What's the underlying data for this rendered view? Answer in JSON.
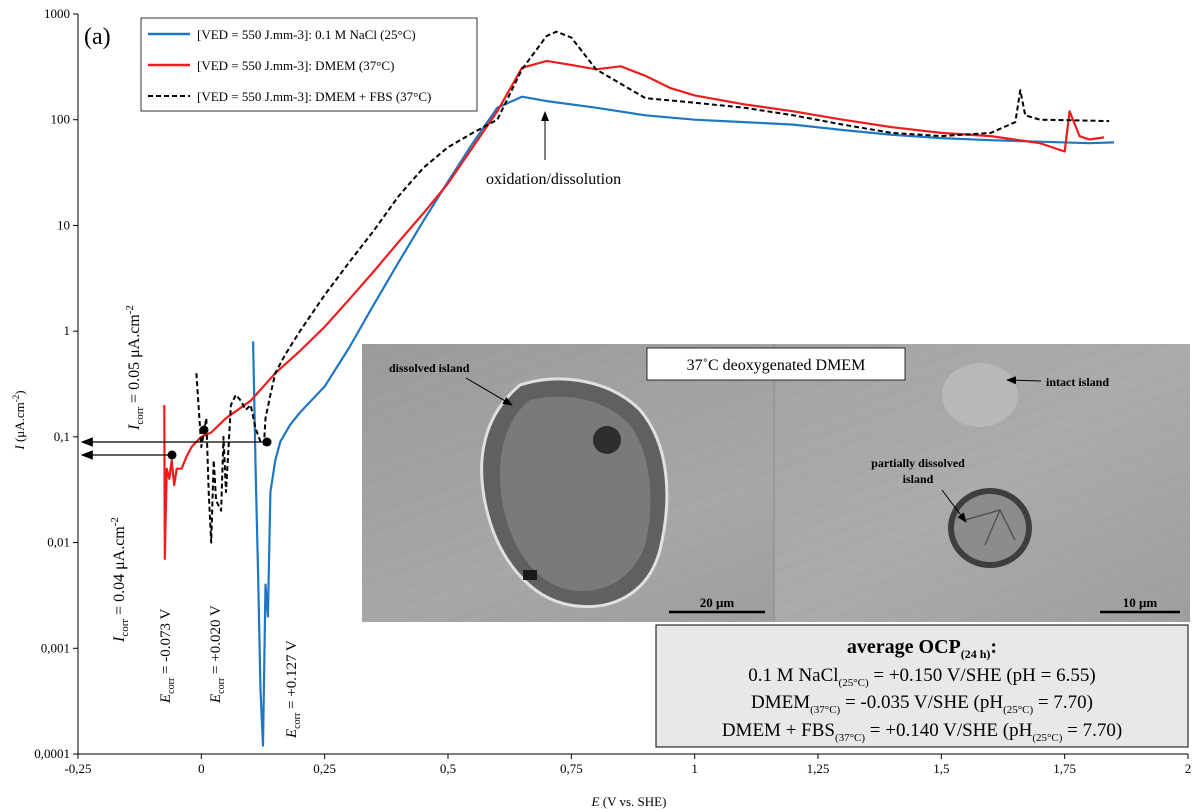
{
  "panel_label": "(a)",
  "annotation_oxidation": "oxidation/dissolution",
  "inset": {
    "title": "37˚C deoxygenated  DMEM",
    "label_dissolved": "dissolved island",
    "label_intact": "intact island",
    "label_partial_1": "partially dissolved",
    "label_partial_2": "island",
    "scalebar_left": "20 μm",
    "scalebar_right": "10 μm"
  },
  "ocp_box": {
    "title": "average OCP",
    "title_sub": "(24 h)",
    "title_colon": ":",
    "line1_a": "0.1 M NaCl",
    "line1_sub": "(25°C)",
    "line1_b": " = +0.150 V/SHE (pH = 6.55)",
    "line2_a": "DMEM",
    "line2_sub": "(37°C)",
    "line2_b": " = -0.035 V/SHE (pH",
    "line2_sub2": "(25°C)",
    "line2_c": " = 7.70)",
    "line3_a": "DMEM + FBS",
    "line3_sub": "(37°C)",
    "line3_b": " = +0.140 V/SHE (pH",
    "line3_sub2": "(25°C)",
    "line3_c": " = 7.70)"
  },
  "icorr_labels": {
    "upper_i": "I",
    "upper_sub": "corr",
    "upper_rest": " = 0.05 μA.cm",
    "upper_sup": "-2",
    "lower_i": "I",
    "lower_sub": "corr",
    "lower_rest": " = 0.04 μA.cm",
    "lower_sup": "-2"
  },
  "ecorr_labels": [
    {
      "e": "E",
      "sub": "corr",
      "rest": " = -0.073 V"
    },
    {
      "e": "E",
      "sub": "corr",
      "rest": " = +0.020 V"
    },
    {
      "e": "E",
      "sub": "corr",
      "rest": " = +0.127 V"
    }
  ],
  "axis_label_y": {
    "i": "I",
    "rest": " (μA.cm",
    "sup": "-2",
    "end": ")"
  },
  "axis_label_x": {
    "e": "E",
    "rest": " (V vs. SHE)"
  },
  "colors": {
    "nacl": "#1f77c4",
    "dmem": "#ee1c1c",
    "fbs": "#000000"
  },
  "chart_data": {
    "type": "line",
    "xlabel": "E (V vs. SHE)",
    "ylabel": "I (μA.cm-2)",
    "xlim": [
      -0.25,
      2
    ],
    "ylim": [
      0.0001,
      1000
    ],
    "y_scale": "log",
    "x_ticks": [
      "-0,25",
      "0",
      "0,25",
      "0,5",
      "0,75",
      "1",
      "1,25",
      "1,5",
      "1,75",
      "2"
    ],
    "y_ticks": [
      "0,0001",
      "0,001",
      "0,01",
      "0,1",
      "1",
      "10",
      "100",
      "1000"
    ],
    "legend_position": "top-left",
    "series": [
      {
        "name": "[VED = 550 J.mm-3]: 0.1 M NaCl (25°C)",
        "x": [
          0.105,
          0.11,
          0.115,
          0.12,
          0.125,
          0.13,
          0.135,
          0.14,
          0.15,
          0.16,
          0.18,
          0.2,
          0.25,
          0.3,
          0.35,
          0.4,
          0.45,
          0.5,
          0.55,
          0.6,
          0.65,
          0.7,
          0.8,
          0.9,
          1.0,
          1.1,
          1.2,
          1.3,
          1.4,
          1.5,
          1.6,
          1.7,
          1.8,
          1.85
        ],
        "y": [
          0.8,
          0.05,
          0.005,
          0.0004,
          0.00012,
          0.004,
          0.002,
          0.03,
          0.06,
          0.09,
          0.13,
          0.17,
          0.3,
          0.7,
          1.8,
          4.5,
          11,
          26,
          60,
          130,
          165,
          150,
          130,
          110,
          100,
          95,
          90,
          80,
          72,
          67,
          64,
          62,
          60,
          61
        ]
      },
      {
        "name": "[VED = 550 J.mm-3]: DMEM (37°C)",
        "x": [
          -0.075,
          -0.074,
          -0.072,
          -0.07,
          -0.065,
          -0.06,
          -0.055,
          -0.05,
          -0.04,
          -0.03,
          -0.02,
          -0.01,
          0.0,
          0.02,
          0.05,
          0.1,
          0.15,
          0.2,
          0.25,
          0.3,
          0.35,
          0.4,
          0.45,
          0.5,
          0.55,
          0.6,
          0.65,
          0.7,
          0.75,
          0.8,
          0.85,
          0.9,
          0.95,
          1.0,
          1.1,
          1.2,
          1.3,
          1.4,
          1.5,
          1.6,
          1.7,
          1.75,
          1.76,
          1.78,
          1.8,
          1.83
        ],
        "y": [
          0.2,
          0.007,
          0.02,
          0.05,
          0.04,
          0.06,
          0.035,
          0.05,
          0.05,
          0.065,
          0.08,
          0.09,
          0.1,
          0.11,
          0.15,
          0.22,
          0.4,
          0.65,
          1.1,
          2,
          3.7,
          7,
          13,
          25,
          55,
          120,
          310,
          360,
          330,
          300,
          320,
          260,
          200,
          170,
          140,
          120,
          100,
          85,
          75,
          70,
          60,
          50,
          120,
          70,
          65,
          68
        ]
      },
      {
        "name": "[VED = 550 J.mm-3]: DMEM + FBS (37°C)",
        "x": [
          -0.01,
          0.0,
          0.01,
          0.015,
          0.02,
          0.025,
          0.03,
          0.04,
          0.045,
          0.05,
          0.06,
          0.07,
          0.08,
          0.09,
          0.1,
          0.11,
          0.12,
          0.127,
          0.13,
          0.14,
          0.15,
          0.17,
          0.2,
          0.25,
          0.3,
          0.35,
          0.4,
          0.45,
          0.5,
          0.55,
          0.6,
          0.65,
          0.7,
          0.72,
          0.75,
          0.8,
          0.9,
          1.0,
          1.1,
          1.2,
          1.3,
          1.4,
          1.5,
          1.6,
          1.65,
          1.66,
          1.67,
          1.7,
          1.8,
          1.84
        ],
        "y": [
          0.4,
          0.08,
          0.15,
          0.03,
          0.01,
          0.06,
          0.025,
          0.02,
          0.1,
          0.03,
          0.2,
          0.25,
          0.22,
          0.18,
          0.2,
          0.12,
          0.09,
          0.085,
          0.15,
          0.25,
          0.4,
          0.6,
          1.0,
          2.2,
          4.5,
          9,
          19,
          35,
          55,
          75,
          100,
          300,
          620,
          680,
          600,
          300,
          160,
          145,
          130,
          110,
          90,
          75,
          70,
          75,
          95,
          190,
          110,
          100,
          98,
          97
        ]
      }
    ]
  }
}
